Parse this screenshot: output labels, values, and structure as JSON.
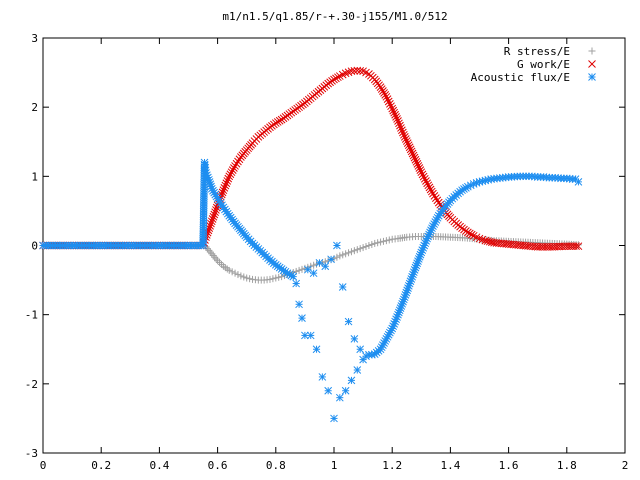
{
  "chart_data": {
    "type": "scatter",
    "title": "m1/n1.5/q1.85/r-+.30-j155/M1.0/512",
    "xlabel": "",
    "ylabel": "",
    "xlim": [
      0,
      2
    ],
    "ylim": [
      -3,
      3
    ],
    "xticks": [
      "0",
      "0.2",
      "0.4",
      "0.6",
      "0.8",
      "1",
      "1.2",
      "1.4",
      "1.6",
      "1.8",
      "2"
    ],
    "yticks": [
      "-3",
      "-2",
      "-1",
      "0",
      "1",
      "2",
      "3"
    ],
    "grid": false,
    "legend_position": "top-right",
    "series": [
      {
        "name": "R stress/E",
        "marker": "plus",
        "color": "#a0a0a0",
        "x": [
          0,
          0.1,
          0.2,
          0.3,
          0.4,
          0.5,
          0.55,
          0.56,
          0.58,
          0.6,
          0.62,
          0.64,
          0.66,
          0.68,
          0.7,
          0.72,
          0.74,
          0.76,
          0.78,
          0.8,
          0.82,
          0.84,
          0.86,
          0.88,
          0.9,
          0.92,
          0.94,
          0.96,
          0.98,
          1.0,
          1.02,
          1.04,
          1.06,
          1.08,
          1.1,
          1.12,
          1.14,
          1.16,
          1.18,
          1.2,
          1.22,
          1.25,
          1.28,
          1.3,
          1.35,
          1.4,
          1.45,
          1.5,
          1.55,
          1.6,
          1.65,
          1.7,
          1.75,
          1.8,
          1.84
        ],
        "y": [
          0,
          0,
          0,
          0,
          0,
          0,
          0,
          -0.02,
          -0.12,
          -0.22,
          -0.3,
          -0.36,
          -0.4,
          -0.44,
          -0.47,
          -0.49,
          -0.5,
          -0.5,
          -0.49,
          -0.47,
          -0.45,
          -0.42,
          -0.39,
          -0.36,
          -0.33,
          -0.3,
          -0.27,
          -0.25,
          -0.22,
          -0.19,
          -0.15,
          -0.12,
          -0.09,
          -0.06,
          -0.03,
          0,
          0.03,
          0.05,
          0.07,
          0.09,
          0.1,
          0.12,
          0.13,
          0.13,
          0.13,
          0.12,
          0.11,
          0.09,
          0.07,
          0.06,
          0.05,
          0.04,
          0.03,
          0.02,
          0.01
        ]
      },
      {
        "name": "G work/E",
        "marker": "cross",
        "color": "#e00000",
        "x": [
          0,
          0.1,
          0.2,
          0.3,
          0.4,
          0.5,
          0.55,
          0.56,
          0.58,
          0.6,
          0.62,
          0.64,
          0.66,
          0.68,
          0.7,
          0.72,
          0.74,
          0.76,
          0.78,
          0.8,
          0.82,
          0.84,
          0.86,
          0.88,
          0.9,
          0.92,
          0.94,
          0.96,
          0.98,
          1.0,
          1.02,
          1.04,
          1.06,
          1.08,
          1.1,
          1.12,
          1.14,
          1.16,
          1.18,
          1.2,
          1.22,
          1.24,
          1.26,
          1.28,
          1.3,
          1.32,
          1.34,
          1.36,
          1.38,
          1.4,
          1.42,
          1.44,
          1.46,
          1.48,
          1.5,
          1.52,
          1.55,
          1.6,
          1.65,
          1.7,
          1.75,
          1.8,
          1.84
        ],
        "y": [
          0,
          0,
          0,
          0,
          0,
          0,
          0,
          0.12,
          0.35,
          0.58,
          0.8,
          1.0,
          1.15,
          1.28,
          1.38,
          1.48,
          1.57,
          1.64,
          1.71,
          1.77,
          1.82,
          1.88,
          1.94,
          2.0,
          2.06,
          2.13,
          2.2,
          2.27,
          2.34,
          2.4,
          2.45,
          2.49,
          2.52,
          2.53,
          2.52,
          2.48,
          2.4,
          2.29,
          2.15,
          1.98,
          1.8,
          1.6,
          1.42,
          1.24,
          1.06,
          0.9,
          0.75,
          0.62,
          0.5,
          0.4,
          0.32,
          0.25,
          0.19,
          0.14,
          0.1,
          0.07,
          0.04,
          0.02,
          0.0,
          -0.02,
          -0.02,
          -0.01,
          -0.01
        ]
      },
      {
        "name": "Acoustic flux/E",
        "marker": "star",
        "color": "#1e8ef0",
        "x": [
          0,
          0.05,
          0.1,
          0.15,
          0.2,
          0.25,
          0.3,
          0.35,
          0.4,
          0.45,
          0.5,
          0.55,
          0.555,
          0.56,
          0.57,
          0.58,
          0.6,
          0.62,
          0.64,
          0.66,
          0.68,
          0.7,
          0.72,
          0.74,
          0.76,
          0.78,
          0.8,
          0.82,
          0.84,
          0.86,
          0.87,
          0.88,
          0.89,
          0.9,
          0.91,
          0.92,
          0.93,
          0.94,
          0.95,
          0.96,
          0.97,
          0.98,
          0.99,
          1.0,
          1.01,
          1.02,
          1.03,
          1.04,
          1.05,
          1.06,
          1.07,
          1.08,
          1.09,
          1.1,
          1.11,
          1.12,
          1.13,
          1.14,
          1.16,
          1.18,
          1.2,
          1.22,
          1.24,
          1.26,
          1.28,
          1.3,
          1.32,
          1.34,
          1.36,
          1.38,
          1.4,
          1.42,
          1.44,
          1.46,
          1.48,
          1.5,
          1.52,
          1.54,
          1.56,
          1.58,
          1.6,
          1.62,
          1.64,
          1.66,
          1.68,
          1.7,
          1.72,
          1.74,
          1.76,
          1.78,
          1.8,
          1.82,
          1.83,
          1.84
        ],
        "y": [
          0,
          0,
          0,
          0,
          0,
          0,
          0,
          0,
          0,
          0,
          0,
          0,
          1.2,
          1.05,
          0.95,
          0.82,
          0.68,
          0.55,
          0.43,
          0.32,
          0.22,
          0.12,
          0.03,
          -0.05,
          -0.13,
          -0.21,
          -0.28,
          -0.34,
          -0.4,
          -0.45,
          -0.55,
          -0.85,
          -1.05,
          -1.3,
          -0.35,
          -1.3,
          -0.4,
          -1.5,
          -0.25,
          -1.9,
          -0.3,
          -2.1,
          -0.2,
          -2.5,
          0.0,
          -2.2,
          -0.6,
          -2.1,
          -1.1,
          -1.95,
          -1.35,
          -1.8,
          -1.5,
          -1.65,
          -1.6,
          -1.58,
          -1.58,
          -1.57,
          -1.5,
          -1.35,
          -1.2,
          -1.0,
          -0.78,
          -0.55,
          -0.32,
          -0.1,
          0.1,
          0.28,
          0.43,
          0.55,
          0.65,
          0.73,
          0.8,
          0.85,
          0.89,
          0.92,
          0.94,
          0.96,
          0.97,
          0.98,
          0.99,
          0.995,
          1.0,
          1.0,
          1.0,
          0.99,
          0.99,
          0.98,
          0.98,
          0.97,
          0.97,
          0.96,
          0.96,
          0.92
        ]
      }
    ]
  }
}
